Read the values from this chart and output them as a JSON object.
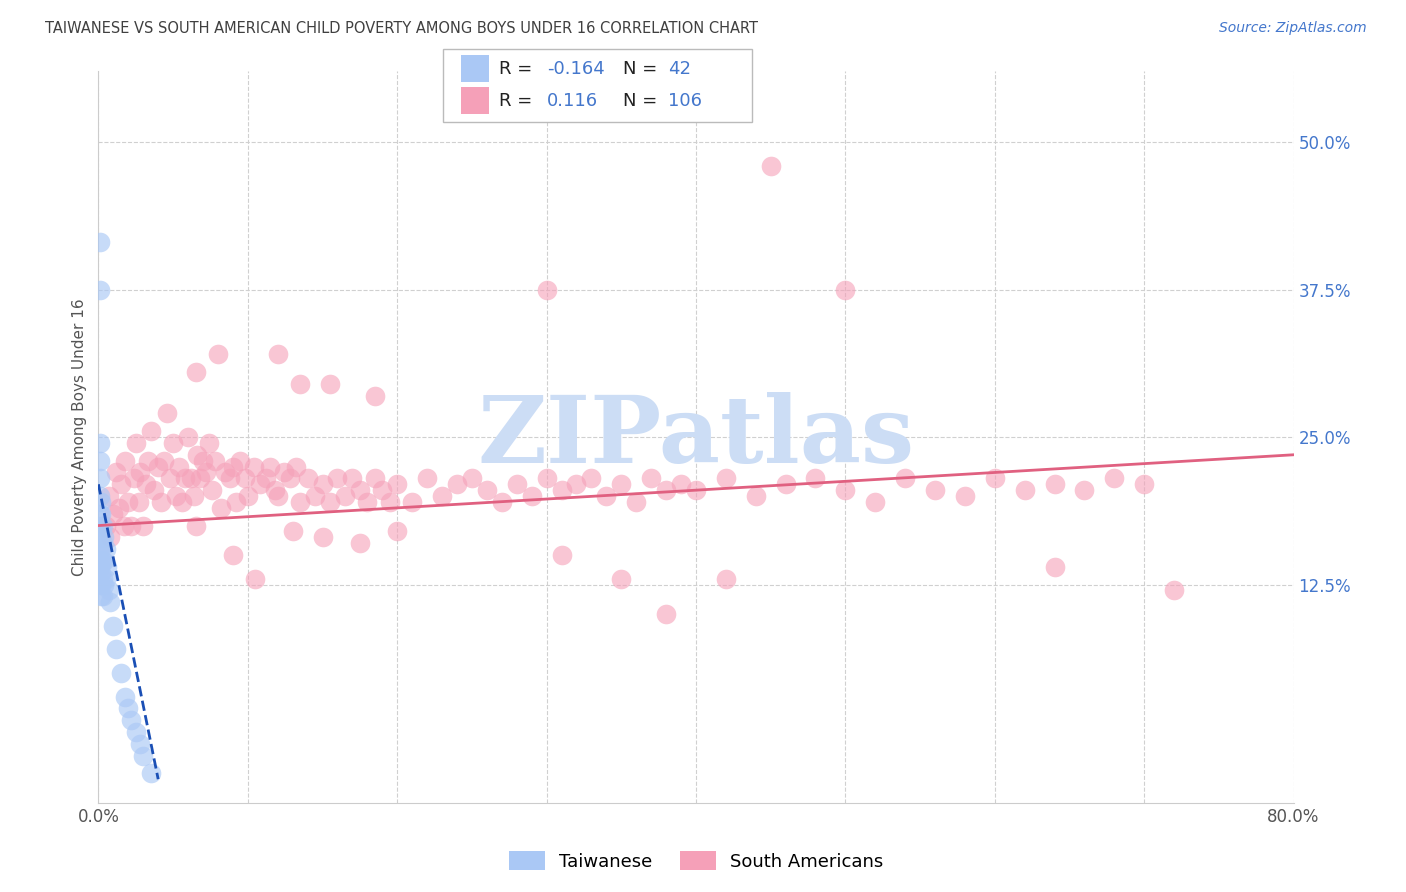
{
  "title": "TAIWANESE VS SOUTH AMERICAN CHILD POVERTY AMONG BOYS UNDER 16 CORRELATION CHART",
  "source": "Source: ZipAtlas.com",
  "ylabel": "Child Poverty Among Boys Under 16",
  "xlim": [
    0.0,
    0.8
  ],
  "ylim": [
    -0.06,
    0.56
  ],
  "ytick_right_labels": [
    "50.0%",
    "37.5%",
    "25.0%",
    "12.5%"
  ],
  "ytick_right_vals": [
    0.5,
    0.375,
    0.25,
    0.125
  ],
  "legend_R1": "-0.164",
  "legend_N1": "42",
  "legend_R2": "0.116",
  "legend_N2": "106",
  "taiwanese_color": "#aac8f5",
  "taiwanese_edge_color": "#aac8f5",
  "south_american_color": "#f5a0b8",
  "south_american_edge_color": "#f5a0b8",
  "taiwanese_line_color": "#1a4fb5",
  "south_american_line_color": "#e06080",
  "watermark_color": "#ccddf5",
  "background_color": "#ffffff",
  "title_color": "#404040",
  "source_color": "#4477cc",
  "legend_val_color": "#4477cc",
  "right_axis_color": "#4477cc",
  "gridline_color": "#d0d0d0",
  "sa_x": [
    0.005,
    0.007,
    0.008,
    0.01,
    0.012,
    0.014,
    0.015,
    0.017,
    0.018,
    0.02,
    0.022,
    0.024,
    0.025,
    0.027,
    0.028,
    0.03,
    0.032,
    0.033,
    0.035,
    0.037,
    0.04,
    0.042,
    0.044,
    0.046,
    0.048,
    0.05,
    0.052,
    0.054,
    0.056,
    0.058,
    0.06,
    0.062,
    0.064,
    0.066,
    0.068,
    0.07,
    0.072,
    0.074,
    0.076,
    0.078,
    0.082,
    0.085,
    0.088,
    0.09,
    0.092,
    0.095,
    0.098,
    0.1,
    0.104,
    0.108,
    0.112,
    0.115,
    0.118,
    0.12,
    0.124,
    0.128,
    0.132,
    0.135,
    0.14,
    0.145,
    0.15,
    0.155,
    0.16,
    0.165,
    0.17,
    0.175,
    0.18,
    0.185,
    0.19,
    0.195,
    0.2,
    0.21,
    0.22,
    0.23,
    0.24,
    0.25,
    0.26,
    0.27,
    0.28,
    0.29,
    0.3,
    0.31,
    0.32,
    0.33,
    0.34,
    0.35,
    0.36,
    0.37,
    0.38,
    0.39,
    0.4,
    0.42,
    0.44,
    0.46,
    0.48,
    0.5,
    0.52,
    0.54,
    0.56,
    0.58,
    0.6,
    0.62,
    0.64,
    0.66,
    0.68,
    0.7
  ],
  "sa_y": [
    0.175,
    0.2,
    0.165,
    0.185,
    0.22,
    0.19,
    0.21,
    0.175,
    0.23,
    0.195,
    0.175,
    0.215,
    0.245,
    0.195,
    0.22,
    0.175,
    0.21,
    0.23,
    0.255,
    0.205,
    0.225,
    0.195,
    0.23,
    0.27,
    0.215,
    0.245,
    0.2,
    0.225,
    0.195,
    0.215,
    0.25,
    0.215,
    0.2,
    0.235,
    0.215,
    0.23,
    0.22,
    0.245,
    0.205,
    0.23,
    0.19,
    0.22,
    0.215,
    0.225,
    0.195,
    0.23,
    0.215,
    0.2,
    0.225,
    0.21,
    0.215,
    0.225,
    0.205,
    0.2,
    0.22,
    0.215,
    0.225,
    0.195,
    0.215,
    0.2,
    0.21,
    0.195,
    0.215,
    0.2,
    0.215,
    0.205,
    0.195,
    0.215,
    0.205,
    0.195,
    0.21,
    0.195,
    0.215,
    0.2,
    0.21,
    0.215,
    0.205,
    0.195,
    0.21,
    0.2,
    0.215,
    0.205,
    0.21,
    0.215,
    0.2,
    0.21,
    0.195,
    0.215,
    0.205,
    0.21,
    0.205,
    0.215,
    0.2,
    0.21,
    0.215,
    0.205,
    0.195,
    0.215,
    0.205,
    0.2,
    0.215,
    0.205,
    0.21,
    0.205,
    0.215,
    0.21
  ],
  "sa_outlier_x": [
    0.45,
    0.5,
    0.3,
    0.12,
    0.08,
    0.065,
    0.135,
    0.155,
    0.185,
    0.31,
    0.35,
    0.38,
    0.42,
    0.065,
    0.09,
    0.105,
    0.13,
    0.15,
    0.175,
    0.2,
    0.64,
    0.72
  ],
  "sa_outlier_y": [
    0.48,
    0.375,
    0.375,
    0.32,
    0.32,
    0.305,
    0.295,
    0.295,
    0.285,
    0.15,
    0.13,
    0.1,
    0.13,
    0.175,
    0.15,
    0.13,
    0.17,
    0.165,
    0.16,
    0.17,
    0.14,
    0.12
  ],
  "tw_x": [
    0.001,
    0.001,
    0.001,
    0.001,
    0.001,
    0.001,
    0.001,
    0.001,
    0.001,
    0.001,
    0.002,
    0.002,
    0.002,
    0.002,
    0.002,
    0.002,
    0.002,
    0.002,
    0.002,
    0.003,
    0.003,
    0.003,
    0.003,
    0.003,
    0.004,
    0.004,
    0.004,
    0.005,
    0.005,
    0.006,
    0.007,
    0.008,
    0.01,
    0.012,
    0.015,
    0.018,
    0.02,
    0.022,
    0.025,
    0.028,
    0.03,
    0.035
  ],
  "tw_y": [
    0.415,
    0.375,
    0.245,
    0.23,
    0.215,
    0.2,
    0.185,
    0.17,
    0.155,
    0.14,
    0.195,
    0.185,
    0.175,
    0.165,
    0.155,
    0.145,
    0.135,
    0.125,
    0.115,
    0.175,
    0.16,
    0.145,
    0.13,
    0.115,
    0.165,
    0.145,
    0.125,
    0.155,
    0.13,
    0.14,
    0.12,
    0.11,
    0.09,
    0.07,
    0.05,
    0.03,
    0.02,
    0.01,
    0.0,
    -0.01,
    -0.02,
    -0.035
  ],
  "sa_line_x0": 0.0,
  "sa_line_y0": 0.175,
  "sa_line_x1": 0.8,
  "sa_line_y1": 0.235,
  "tw_line_x0": 0.0,
  "tw_line_y0": 0.21,
  "tw_line_x1": 0.04,
  "tw_line_y1": -0.04
}
